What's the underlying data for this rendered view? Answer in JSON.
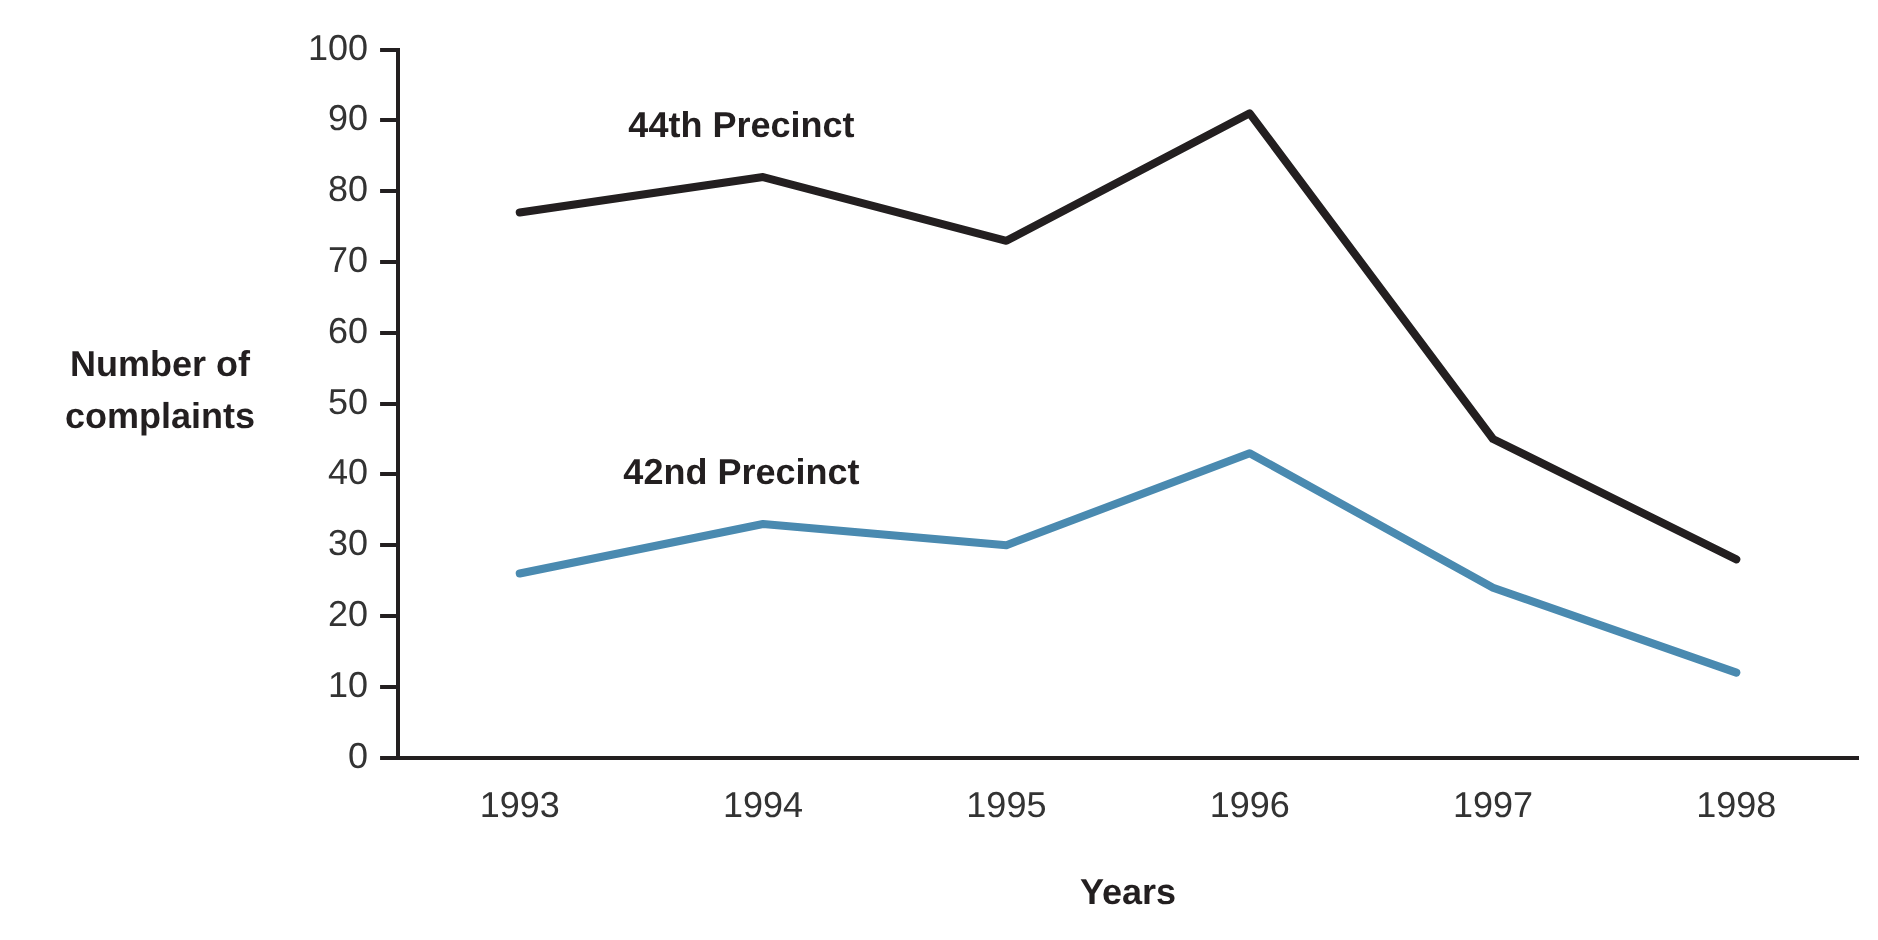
{
  "chart_data": {
    "type": "line",
    "xlabel": "Years",
    "ylabel": "Number of complaints",
    "categories": [
      "1993",
      "1994",
      "1995",
      "1996",
      "1997",
      "1998"
    ],
    "series": [
      {
        "name": "44th Precinct",
        "color": "#231f20",
        "values": [
          77,
          82,
          73,
          91,
          45,
          28
        ]
      },
      {
        "name": "42nd Precinct",
        "color": "#4a8ab0",
        "values": [
          26,
          33,
          30,
          43,
          24,
          12
        ]
      }
    ],
    "ylim": [
      0,
      100
    ],
    "yticks": [
      0,
      10,
      20,
      30,
      40,
      50,
      60,
      70,
      80,
      90,
      100
    ],
    "grid": false,
    "legend": false,
    "marker": "none",
    "line_style": "solid"
  }
}
